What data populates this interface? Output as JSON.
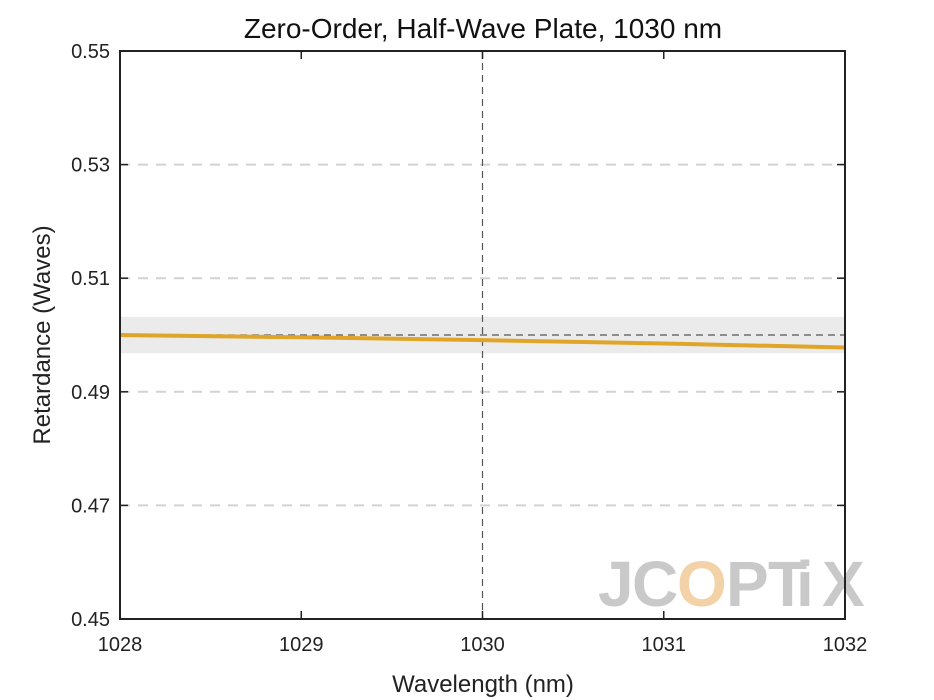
{
  "chart_data": {
    "type": "line",
    "title": "Zero-Order, Half-Wave Plate, 1030 nm",
    "xlabel": "Wavelength (nm)",
    "ylabel": "Retardance (Waves)",
    "xlim": [
      1028,
      1032
    ],
    "ylim": [
      0.45,
      0.55
    ],
    "xticks": [
      1028,
      1029,
      1030,
      1031,
      1032
    ],
    "xtick_labels": [
      "1028",
      "1029",
      "1030",
      "1031",
      "1032"
    ],
    "yticks": [
      0.45,
      0.47,
      0.49,
      0.51,
      0.53,
      0.55
    ],
    "ytick_labels": [
      "0.45",
      "0.47",
      "0.49",
      "0.51",
      "0.53",
      "0.55"
    ],
    "grid": "horizontal dashed",
    "target_retardance": 0.5,
    "tolerance_band": [
      0.4968,
      0.5032
    ],
    "design_wavelength": 1030,
    "series": [
      {
        "color": "#E0A528",
        "x": [
          1028,
          1029,
          1030,
          1031,
          1032
        ],
        "values": [
          0.5,
          0.4996,
          0.4991,
          0.4985,
          0.4978
        ]
      }
    ]
  },
  "watermark": {
    "letters": [
      "J",
      "C",
      "O",
      "P",
      "T",
      "i",
      "X"
    ],
    "colors": {
      "gray": "#c9c9c9",
      "orange": "#f3d2a8"
    }
  }
}
